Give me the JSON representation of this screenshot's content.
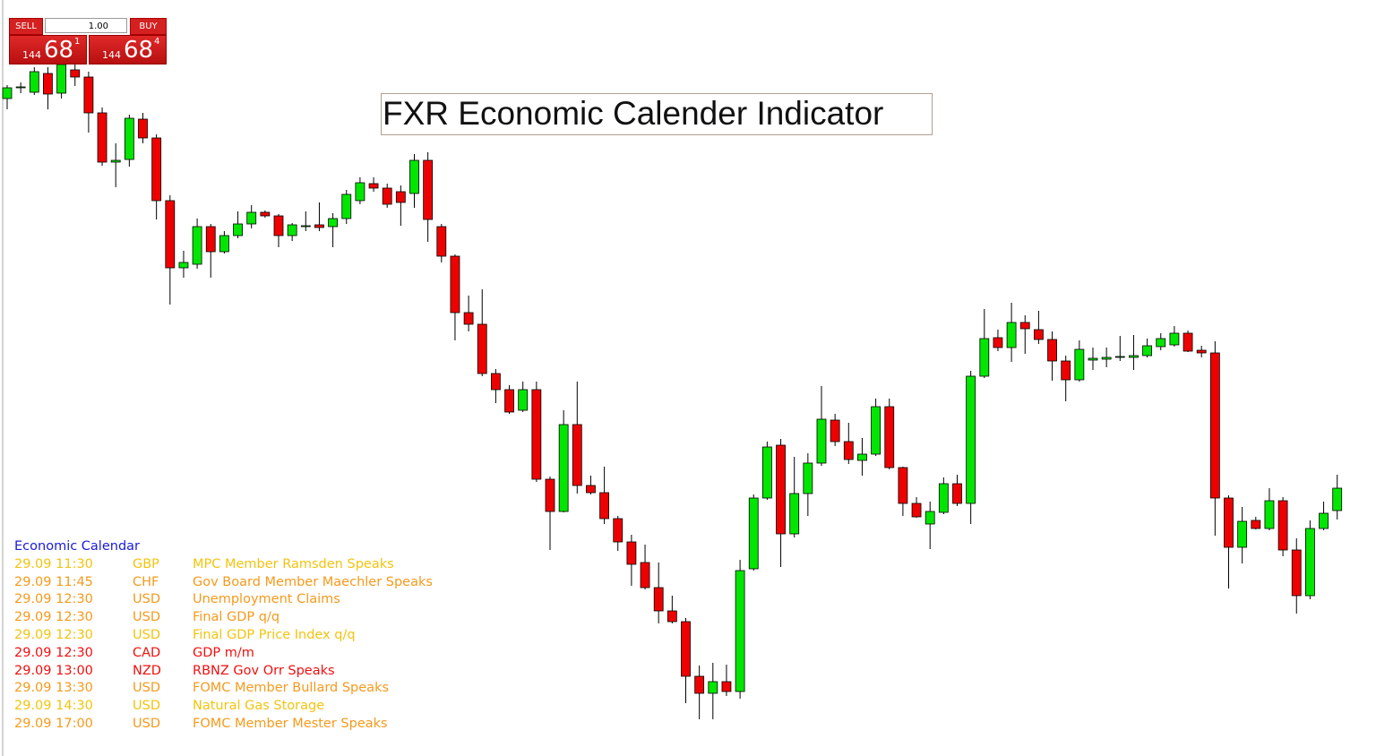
{
  "trade_panel": {
    "sell": "SELL",
    "buy": "BUY",
    "volume": "1.00",
    "bid": {
      "big": "144",
      "main": "68",
      "small": "1"
    },
    "ask": {
      "big": "144",
      "main": "68",
      "small": "4"
    }
  },
  "title": "FXR Economic Calender Indicator",
  "calendar": {
    "title": "Economic Calendar",
    "title_color": "#1a1adb",
    "rows": [
      {
        "time": "29.09 11:30",
        "currency": "GBP",
        "event": "MPC Member Ramsden Speaks",
        "color": "#f2c40f"
      },
      {
        "time": "29.09 11:45",
        "currency": "CHF",
        "event": "Gov Board Member Maechler Speaks",
        "color": "#f59a1c"
      },
      {
        "time": "29.09 12:30",
        "currency": "USD",
        "event": "Unemployment Claims",
        "color": "#f59a1c"
      },
      {
        "time": "29.09 12:30",
        "currency": "USD",
        "event": "Final GDP q/q",
        "color": "#f59a1c"
      },
      {
        "time": "29.09 12:30",
        "currency": "USD",
        "event": "Final GDP Price Index q/q",
        "color": "#f2c40f"
      },
      {
        "time": "29.09 12:30",
        "currency": "CAD",
        "event": "GDP m/m",
        "color": "#f01010"
      },
      {
        "time": "29.09 13:00",
        "currency": "NZD",
        "event": "RBNZ Gov Orr Speaks",
        "color": "#f01010"
      },
      {
        "time": "29.09 13:30",
        "currency": "USD",
        "event": "FOMC Member Bullard Speaks",
        "color": "#f59a1c"
      },
      {
        "time": "29.09 14:30",
        "currency": "USD",
        "event": "Natural Gas Storage",
        "color": "#f2c40f"
      },
      {
        "time": "29.09 17:00",
        "currency": "USD",
        "event": "FOMC Member Mester Speaks",
        "color": "#f59a1c"
      }
    ]
  },
  "chart_data": {
    "type": "candlestick",
    "up_color": "#00e600",
    "down_color": "#ee0000",
    "ylim": [
      0,
      844
    ],
    "open": [
      734,
      746,
      741,
      762,
      740,
      766,
      758,
      718,
      663,
      666,
      711,
      690,
      620,
      545,
      549,
      591,
      563,
      581,
      594,
      607,
      603,
      581,
      591,
      593,
      591,
      600,
      620,
      639,
      634,
      630,
      628,
      665,
      591,
      558,
      495,
      482,
      427,
      409,
      386,
      409,
      309,
      273,
      370,
      302,
      294,
      265,
      239,
      216,
      188,
      162,
      150,
      89,
      70,
      83,
      72,
      209,
      288,
      347,
      248,
      293,
      327,
      375,
      351,
      330,
      337,
      390,
      322,
      282,
      259,
      272,
      304,
      282,
      424,
      467,
      456,
      484,
      476,
      465,
      441,
      420,
      442,
      443,
      445,
      445,
      447,
      457,
      459,
      472,
      453,
      450,
      288,
      233,
      263,
      254,
      285,
      230,
      179,
      254,
      274
    ],
    "high": [
      749,
      752,
      769,
      769,
      776,
      772,
      764,
      724,
      684,
      716,
      718,
      694,
      626,
      564,
      600,
      594,
      586,
      608,
      615,
      609,
      605,
      595,
      608,
      618,
      606,
      632,
      646,
      646,
      639,
      637,
      672,
      674,
      594,
      560,
      514,
      521,
      432,
      414,
      418,
      418,
      312,
      386,
      418,
      313,
      323,
      268,
      247,
      236,
      216,
      179,
      154,
      101,
      104,
      102,
      219,
      292,
      351,
      354,
      334,
      338,
      413,
      382,
      372,
      355,
      399,
      399,
      323,
      289,
      284,
      311,
      314,
      430,
      499,
      476,
      506,
      492,
      497,
      474,
      447,
      464,
      456,
      456,
      469,
      470,
      466,
      472,
      480,
      475,
      458,
      463,
      291,
      278,
      267,
      299,
      289,
      243,
      263,
      284,
      314
    ],
    "low": [
      722,
      740,
      738,
      722,
      734,
      748,
      696,
      659,
      635,
      658,
      684,
      599,
      504,
      534,
      544,
      534,
      561,
      578,
      589,
      601,
      568,
      575,
      586,
      586,
      568,
      594,
      616,
      630,
      612,
      592,
      612,
      574,
      551,
      464,
      474,
      424,
      394,
      382,
      384,
      306,
      230,
      272,
      293,
      292,
      259,
      229,
      190,
      186,
      148,
      148,
      59,
      41,
      41,
      67,
      64,
      207,
      286,
      211,
      244,
      268,
      324,
      346,
      326,
      313,
      335,
      320,
      268,
      266,
      231,
      270,
      279,
      259,
      422,
      452,
      440,
      449,
      460,
      419,
      396,
      418,
      431,
      434,
      441,
      431,
      445,
      453,
      457,
      451,
      445,
      246,
      187,
      215,
      253,
      252,
      223,
      159,
      175,
      252,
      264
    ],
    "close": [
      746,
      747,
      764,
      739,
      772,
      758,
      718,
      663,
      665,
      712,
      690,
      620,
      545,
      551,
      591,
      563,
      581,
      594,
      607,
      603,
      581,
      593,
      592,
      590,
      600,
      627,
      640,
      634,
      616,
      618,
      665,
      599,
      558,
      495,
      482,
      427,
      409,
      384,
      409,
      309,
      273,
      370,
      302,
      294,
      265,
      239,
      214,
      188,
      162,
      150,
      89,
      70,
      83,
      72,
      207,
      288,
      345,
      248,
      293,
      327,
      376,
      351,
      331,
      337,
      390,
      322,
      282,
      267,
      273,
      304,
      282,
      424,
      466,
      456,
      484,
      477,
      465,
      441,
      420,
      454,
      444,
      445,
      446,
      447,
      458,
      466,
      472,
      452,
      450,
      288,
      233,
      262,
      254,
      285,
      230,
      179,
      254,
      271,
      299
    ]
  }
}
